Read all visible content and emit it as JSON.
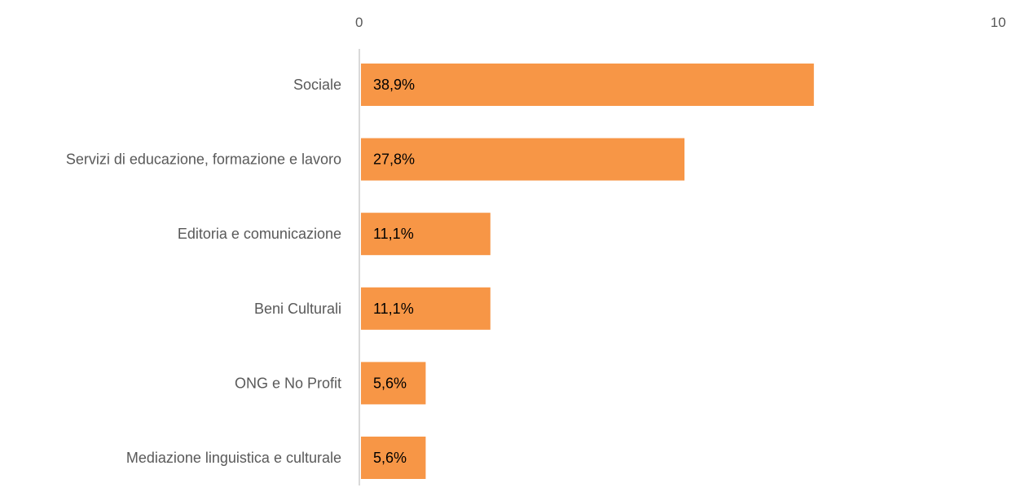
{
  "chart_data": {
    "type": "bar",
    "orientation": "horizontal",
    "categories": [
      "Sociale",
      "Servizi di educazione, formazione e lavoro",
      "Editoria e comunicazione",
      "Beni Culturali",
      "ONG e No Profit",
      "Mediazione linguistica e culturale"
    ],
    "values": [
      7,
      5,
      2,
      2,
      1,
      1
    ],
    "data_labels": [
      "38,9%",
      "27,8%",
      "11,1%",
      "11,1%",
      "5,6%",
      "5,6%"
    ],
    "x_ticks": [
      "0",
      "10"
    ],
    "xlim": [
      0,
      10
    ],
    "axis_position": "top",
    "grid": false,
    "legend": "none",
    "title": "",
    "xlabel": "",
    "ylabel": "",
    "colors": {
      "bar": "#F79646",
      "axis_line": "#D9D9D9",
      "tick_text": "#595959",
      "category_text": "#595959",
      "data_label_text": "#000000"
    }
  }
}
